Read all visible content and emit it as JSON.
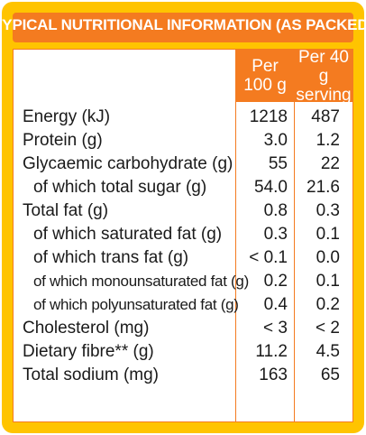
{
  "title": "TYPICAL NUTRITIONAL INFORMATION (AS PACKED)",
  "columns": {
    "per_100g": [
      "Per",
      "100 g"
    ],
    "per_serving": [
      "Per 40 g",
      "serving"
    ]
  },
  "rows": [
    {
      "label": "Energy (kJ)",
      "per_100g": "1218",
      "per_serving": "487"
    },
    {
      "label": "Protein (g)",
      "per_100g": "3.0",
      "per_serving": "1.2"
    },
    {
      "label": "Glycaemic carbohydrate (g)",
      "per_100g": "55",
      "per_serving": "22"
    },
    {
      "label": "of which total sugar (g)",
      "per_100g": "54.0",
      "per_serving": "21.6"
    },
    {
      "label": "Total fat (g)",
      "per_100g": "0.8",
      "per_serving": "0.3"
    },
    {
      "label": "of which saturated fat (g)",
      "per_100g": "0.3",
      "per_serving": "0.1"
    },
    {
      "label": "of which trans fat (g)",
      "per_100g": "< 0.1",
      "per_serving": "0.0"
    },
    {
      "label": "of which monounsaturated fat (g)",
      "per_100g": "0.2",
      "per_serving": "0.1"
    },
    {
      "label": "of which polyunsaturated fat (g)",
      "per_100g": "0.4",
      "per_serving": "0.2"
    },
    {
      "label": "Cholesterol (mg)",
      "per_100g": "< 3",
      "per_serving": "< 2"
    },
    {
      "label": "Dietary fibre** (g)",
      "per_100g": "11.2",
      "per_serving": "4.5"
    },
    {
      "label": "Total sodium (mg)",
      "per_100g": "163",
      "per_serving": "65"
    }
  ],
  "colors": {
    "frame": "#ffc400",
    "accent": "#f47b20",
    "text": "#1a1a1a",
    "header_text": "#ffffff"
  }
}
